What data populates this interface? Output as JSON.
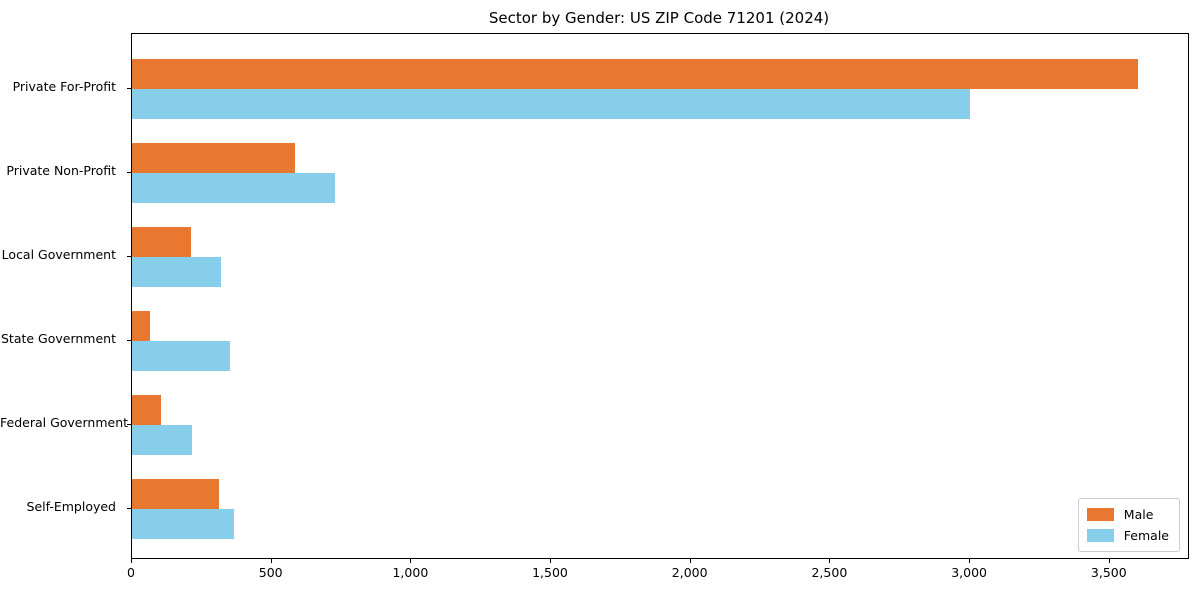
{
  "title": "Sector by Gender: US ZIP Code 71201 (2024)",
  "colors": {
    "male": "#e8772f",
    "female": "#87ceeb",
    "axis": "#000000",
    "legend_border": "#cccccc",
    "background": "#ffffff"
  },
  "legend": {
    "items": [
      {
        "label": "Male",
        "color": "#e8772f"
      },
      {
        "label": "Female",
        "color": "#87ceeb"
      }
    ]
  },
  "x_axis": {
    "tick_values": [
      0,
      500,
      1000,
      1500,
      2000,
      2500,
      3000,
      3500
    ],
    "tick_labels": [
      "0",
      "500",
      "1,000",
      "1,500",
      "2,000",
      "2,500",
      "3,000",
      "3,500"
    ]
  },
  "chart_data": {
    "type": "bar",
    "orientation": "horizontal",
    "title": "Sector by Gender: US ZIP Code 71201 (2024)",
    "categories": [
      "Private For-Profit",
      "Private Non-Profit",
      "Local Government",
      "State Government",
      "Federal Government",
      "Self-Employed"
    ],
    "series": [
      {
        "name": "Male",
        "color": "#e8772f",
        "values": [
          3600,
          585,
          210,
          65,
          105,
          310
        ]
      },
      {
        "name": "Female",
        "color": "#87ceeb",
        "values": [
          3000,
          725,
          320,
          350,
          215,
          365
        ]
      }
    ],
    "xlabel": "",
    "ylabel": "",
    "xlim": [
      0,
      3780
    ],
    "grid": false,
    "legend_position": "lower right"
  }
}
